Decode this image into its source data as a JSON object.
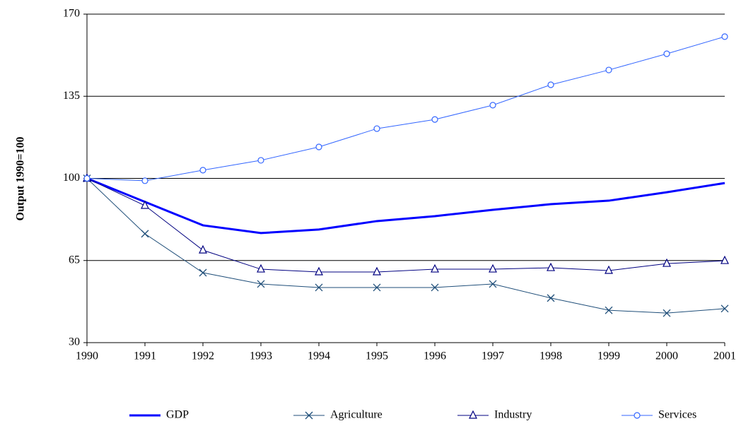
{
  "chart_data": {
    "type": "line",
    "y_label": "Output 1990=100",
    "categories": [
      "1990",
      "1991",
      "1992",
      "1993",
      "1994",
      "1995",
      "1996",
      "1997",
      "1998",
      "1999",
      "2000",
      "2001"
    ],
    "series": [
      {
        "name": "GDP",
        "color": "#0000ff",
        "marker": "none",
        "width": 3,
        "values": [
          100,
          90,
          80,
          76.7,
          78.2,
          81.8,
          83.9,
          86.6,
          89,
          90.5,
          94.1,
          98
        ]
      },
      {
        "name": "Agriculture",
        "color": "#1f4e79",
        "marker": "x",
        "width": 1,
        "values": [
          100,
          76.4,
          59.8,
          55,
          53.5,
          53.5,
          53.5,
          55,
          49,
          43.8,
          42.6,
          44.5
        ]
      },
      {
        "name": "Industry",
        "color": "#000080",
        "marker": "triangle",
        "width": 1,
        "values": [
          100,
          88.4,
          69.4,
          61.3,
          60.1,
          60.1,
          61.3,
          61.3,
          61.9,
          60.7,
          63.7,
          64.9
        ]
      },
      {
        "name": "Services",
        "color": "#3366ff",
        "marker": "circle",
        "width": 1,
        "values": [
          100,
          99,
          103.5,
          107.7,
          113.4,
          121.2,
          125.1,
          131.2,
          139.9,
          146.2,
          153.1,
          160.4
        ]
      }
    ],
    "ylim": [
      30,
      170
    ],
    "yticks": [
      30,
      65,
      100,
      135,
      170
    ],
    "grid": true
  }
}
